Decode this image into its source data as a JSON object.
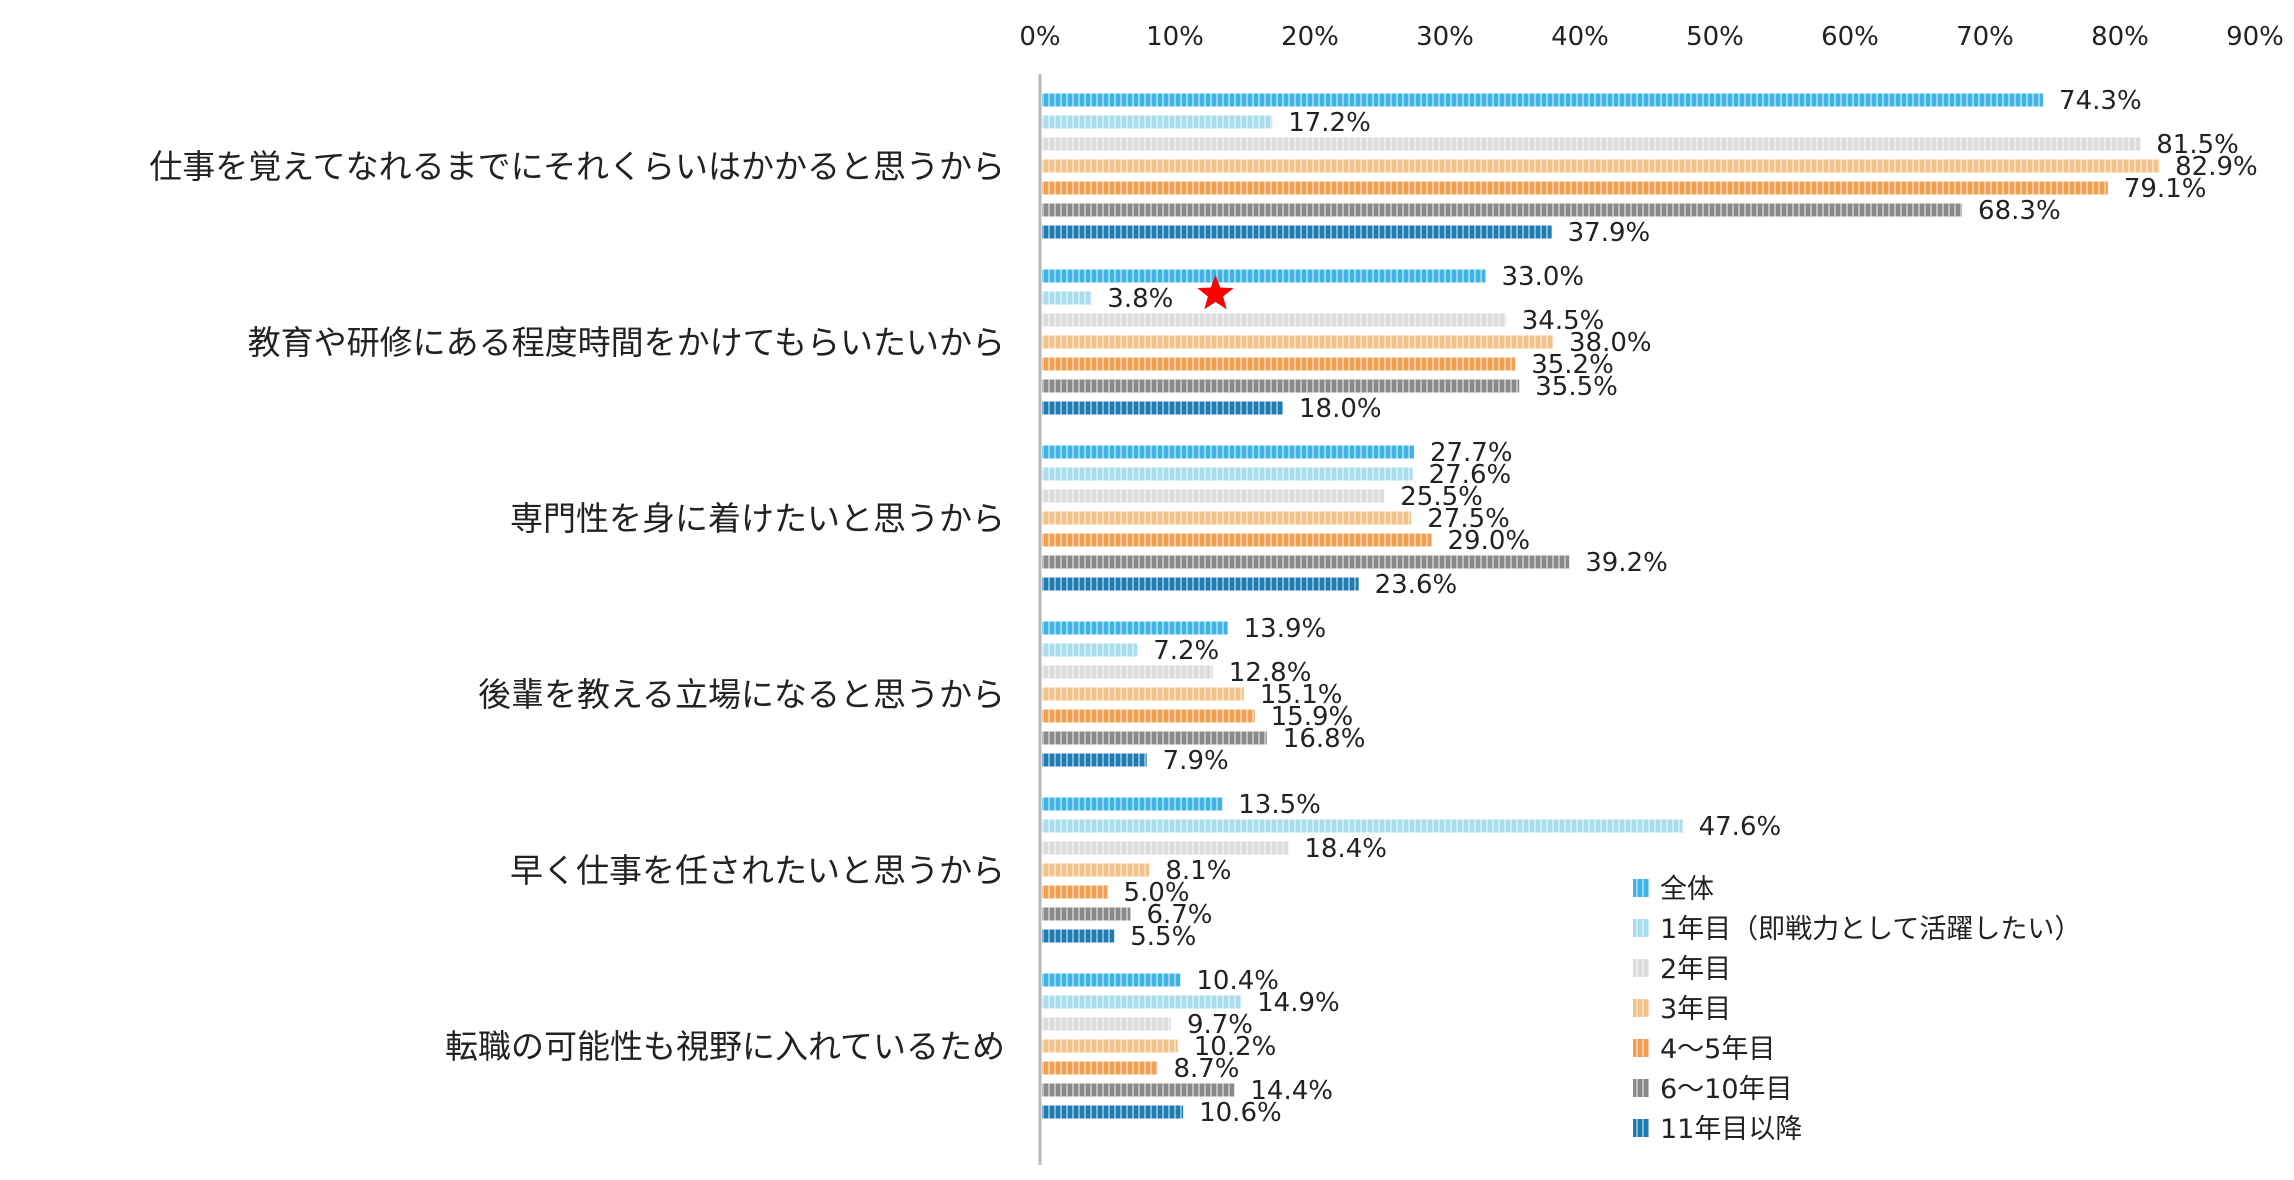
{
  "chart_data": {
    "type": "bar",
    "orientation": "horizontal",
    "title": "",
    "xlabel": "",
    "ylabel": "",
    "xlim": [
      0,
      90
    ],
    "x_ticks": [
      "0%",
      "10%",
      "20%",
      "30%",
      "40%",
      "50%",
      "60%",
      "70%",
      "80%",
      "90%"
    ],
    "x_tick_values": [
      0,
      10,
      20,
      30,
      40,
      50,
      60,
      70,
      80,
      90
    ],
    "grid": false,
    "legend_position": "bottom-right",
    "categories": [
      "仕事を覚えてなれるまでにそれくらいはかかると思うから",
      "教育や研修にある程度時間をかけてもらいたいから",
      "専門性を身に着けたいと思うから",
      "後輩を教える立場になると思うから",
      "早く仕事を任されたいと思うから",
      "転職の可能性も視野に入れているため"
    ],
    "series": [
      {
        "name": "全体",
        "color": "#3fb3e6",
        "values": [
          74.3,
          33.0,
          27.7,
          13.9,
          13.5,
          10.4
        ],
        "labels": [
          "74.3%",
          "33.0%",
          "27.7%",
          "13.9%",
          "13.5%",
          "10.4%"
        ]
      },
      {
        "name": "1年目（即戦力として活躍したい）",
        "color": "#a9dcef",
        "values": [
          17.2,
          3.8,
          27.6,
          7.2,
          47.6,
          14.9
        ],
        "labels": [
          "17.2%",
          "3.8%",
          "27.6%",
          "7.2%",
          "47.6%",
          "14.9%"
        ]
      },
      {
        "name": "2年目",
        "color": "#dcdcdc",
        "values": [
          81.5,
          34.5,
          25.5,
          12.8,
          18.4,
          9.7
        ],
        "labels": [
          "81.5%",
          "34.5%",
          "25.5%",
          "12.8%",
          "18.4%",
          "9.7%"
        ]
      },
      {
        "name": "3年目",
        "color": "#f5c28a",
        "values": [
          82.9,
          38.0,
          27.5,
          15.1,
          8.1,
          10.2
        ],
        "labels": [
          "82.9%",
          "38.0%",
          "27.5%",
          "15.1%",
          "8.1%",
          "10.2%"
        ]
      },
      {
        "name": "4〜5年目",
        "color": "#f0a050",
        "values": [
          79.1,
          35.2,
          29.0,
          15.9,
          5.0,
          8.7
        ],
        "labels": [
          "79.1%",
          "35.2%",
          "29.0%",
          "15.9%",
          "5.0%",
          "8.7%"
        ]
      },
      {
        "name": "6〜10年目",
        "color": "#8a8a8a",
        "values": [
          68.3,
          35.5,
          39.2,
          16.8,
          6.7,
          14.4
        ],
        "labels": [
          "68.3%",
          "35.5%",
          "39.2%",
          "16.8%",
          "6.7%",
          "14.4%"
        ]
      },
      {
        "name": "11年目以降",
        "color": "#1f7bb0",
        "values": [
          37.9,
          18.0,
          23.6,
          7.9,
          5.5,
          10.6
        ],
        "labels": [
          "37.9%",
          "18.0%",
          "23.6%",
          "7.9%",
          "5.5%",
          "10.6%"
        ]
      }
    ],
    "annotations": [
      {
        "type": "star",
        "color": "#ff0000",
        "category_index": 1,
        "series_index": 1,
        "x_value": 13
      }
    ]
  }
}
